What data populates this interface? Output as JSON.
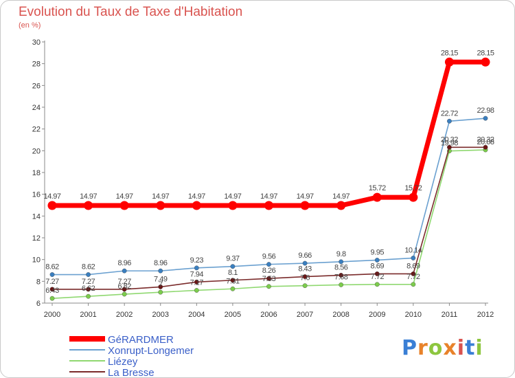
{
  "title": "Evolution du Taux de Taxe d'Habitation",
  "subtitle": "(en %)",
  "brand": {
    "letters": [
      "P",
      "r",
      "o",
      "x",
      "i",
      "t",
      "i"
    ],
    "colors": [
      "#3a7fd5",
      "#e8822a",
      "#8dc63f",
      "#e8822a",
      "#d9534f",
      "#3a7fd5",
      "#8dc63f"
    ]
  },
  "chart_data": {
    "type": "line",
    "x": [
      "2000",
      "2001",
      "2002",
      "2003",
      "2004",
      "2005",
      "2006",
      "2007",
      "2008",
      "2009",
      "2010",
      "2011",
      "2012"
    ],
    "ylim": [
      6,
      30
    ],
    "yticks": [
      6,
      8,
      10,
      12,
      14,
      16,
      18,
      20,
      22,
      24,
      26,
      28,
      30
    ],
    "grid": false,
    "legend_position": "bottom-left",
    "series": [
      {
        "name": "GéRARDMER",
        "color": "#ff0000",
        "values": [
          14.97,
          14.97,
          14.97,
          14.97,
          14.97,
          14.97,
          14.97,
          14.97,
          14.97,
          15.72,
          15.72,
          28.15,
          28.15
        ],
        "labels": [
          "14.97",
          "14.97",
          "14.97",
          "14.97",
          "14.97",
          "14.97",
          "14.97",
          "14.97",
          "14.97",
          "15.72",
          "15.72",
          "28.15",
          "28.15"
        ]
      },
      {
        "name": "Xonrupt-Longemer",
        "color": "#6aa0d0",
        "marker": "#3a7fc0",
        "values": [
          8.62,
          8.62,
          8.96,
          8.96,
          9.23,
          9.37,
          9.56,
          9.66,
          9.8,
          9.95,
          10.14,
          22.72,
          22.98
        ],
        "labels": [
          "8.62",
          "8.62",
          "8.96",
          "8.96",
          "9.23",
          "9.37",
          "9.56",
          "9.66",
          "9.8",
          "9.95",
          "10.14",
          "22.72",
          "22.98"
        ]
      },
      {
        "name": "Liézey",
        "color": "#8fd870",
        "marker": "#7ccc4c",
        "values": [
          6.43,
          6.62,
          6.82,
          7.0,
          7.17,
          7.31,
          7.53,
          7.6,
          7.68,
          7.72,
          7.72,
          19.98,
          20.08
        ],
        "labels": [
          "6.43",
          "6.62",
          "6.82",
          "7",
          "7.17",
          "7.31",
          "7.53",
          "7.6",
          "7.68",
          "7.72",
          "7.72",
          "19.98",
          "20.08"
        ]
      },
      {
        "name": "La Bresse",
        "color": "#7a2a2a",
        "marker": "#6b1515",
        "values": [
          7.27,
          7.27,
          7.27,
          7.49,
          7.94,
          8.1,
          8.26,
          8.43,
          8.56,
          8.69,
          8.69,
          20.32,
          20.32
        ],
        "labels": [
          "7.27",
          "7.27",
          "7.27",
          "7.49",
          "7.94",
          "8.1",
          "8.26",
          "8.43",
          "8.56",
          "8.69",
          "8.69",
          "20.32",
          "20.32"
        ]
      }
    ]
  }
}
